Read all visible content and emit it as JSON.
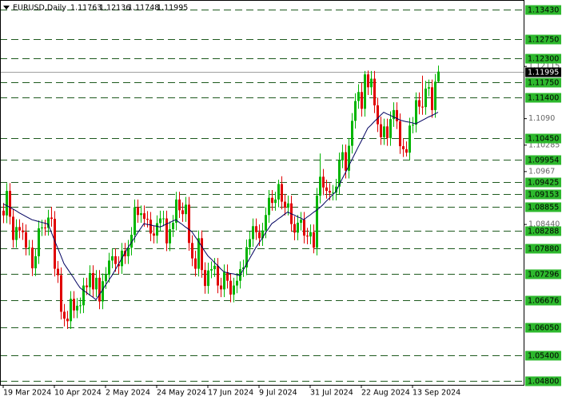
{
  "chart_data": {
    "type": "candlestick",
    "title": "EURUSD,Daily",
    "categories": [
      "19 Mar 2024",
      null,
      null,
      null,
      null,
      null,
      null,
      null,
      null,
      null,
      null,
      null,
      null,
      null,
      null,
      null,
      "10 Apr 2024",
      null,
      null,
      null,
      null,
      null,
      null,
      null,
      null,
      null,
      null,
      null,
      null,
      null,
      null,
      null,
      "2 May 2024",
      null,
      null,
      null,
      null,
      null,
      null,
      null,
      null,
      null,
      null,
      null,
      null,
      null,
      null,
      null,
      "24 May 2024",
      null,
      null,
      null,
      null,
      null,
      null,
      null,
      null,
      null,
      null,
      null,
      null,
      null,
      null,
      null,
      "17 Jun 2024",
      null,
      null,
      null,
      null,
      null,
      null,
      null,
      null,
      null,
      null,
      null,
      null,
      null,
      null,
      null,
      "9 Jul 2024",
      null,
      null,
      null,
      null,
      null,
      null,
      null,
      null,
      null,
      null,
      null,
      null,
      null,
      null,
      null,
      "31 Jul 2024",
      null,
      null,
      null,
      null,
      null,
      null,
      null,
      null,
      null,
      null,
      null,
      null,
      null,
      null,
      null,
      "22 Aug 2024",
      null,
      null,
      null,
      null,
      null,
      null,
      null,
      null,
      null,
      null,
      null,
      null,
      null,
      null,
      null,
      "13 Sep 2024",
      null,
      null,
      null,
      null,
      null,
      null,
      null,
      null
    ],
    "open": [
      1.0876,
      1.0865,
      1.0922,
      1.0862,
      1.0808,
      1.0838,
      1.083,
      1.0826,
      1.079,
      1.079,
      1.0742,
      1.077,
      1.0835,
      1.0837,
      1.0836,
      1.086,
      1.0857,
      1.0741,
      1.0726,
      1.0641,
      1.0625,
      1.0619,
      1.0671,
      1.0644,
      1.0655,
      1.0656,
      1.0702,
      1.0698,
      1.0731,
      1.0693,
      1.072,
      1.0665,
      1.0712,
      1.0727,
      1.076,
      1.077,
      1.0752,
      1.0747,
      1.0783,
      1.077,
      1.079,
      1.082,
      1.0884,
      1.0866,
      1.087,
      1.0857,
      1.0855,
      1.0823,
      1.0818,
      1.0847,
      1.0858,
      1.0858,
      1.08,
      1.0833,
      1.0848,
      1.0902,
      1.0877,
      1.0868,
      1.089,
      1.0801,
      1.0765,
      1.0741,
      1.0812,
      1.0738,
      1.0701,
      1.0737,
      1.074,
      1.0748,
      1.0702,
      1.0693,
      1.0733,
      1.0713,
      1.0681,
      1.0702,
      1.0713,
      1.074,
      1.0744,
      1.0791,
      1.081,
      1.084,
      1.0826,
      1.0812,
      1.083,
      1.0866,
      1.0906,
      1.0894,
      1.0902,
      1.0938,
      1.0897,
      1.0883,
      1.0893,
      1.0845,
      1.0825,
      1.0848,
      1.0855,
      1.0818,
      1.0816,
      1.0826,
      1.079,
      1.0911,
      1.0955,
      1.093,
      1.0922,
      1.0918,
      1.0918,
      1.0932,
      1.0993,
      1.1012,
      1.0969,
      1.1027,
      1.1085,
      1.1131,
      1.1152,
      1.1113,
      1.1193,
      1.1163,
      1.1183,
      1.1121,
      1.1077,
      1.1047,
      1.1072,
      1.1045,
      1.1089,
      1.111,
      1.1084,
      1.1026,
      1.1019,
      1.1011,
      1.1074,
      1.1076,
      1.1133,
      1.1118,
      1.1117,
      1.116,
      1.1163,
      1.111,
      1.11763
    ],
    "high": [
      1.0894,
      1.094,
      1.094,
      1.088,
      1.0856,
      1.0856,
      1.0848,
      1.0844,
      1.0808,
      1.0808,
      1.0788,
      1.0853,
      1.0855,
      1.0855,
      1.0878,
      1.0885,
      1.0875,
      1.0759,
      1.0744,
      1.0659,
      1.0643,
      1.0689,
      1.0689,
      1.0673,
      1.0674,
      1.072,
      1.072,
      1.0749,
      1.0749,
      1.0738,
      1.0738,
      1.073,
      1.0745,
      1.0778,
      1.0788,
      1.0788,
      1.077,
      1.0801,
      1.0801,
      1.0808,
      1.0838,
      1.0902,
      1.0902,
      1.0888,
      1.0888,
      1.0875,
      1.0873,
      1.0841,
      1.0865,
      1.0876,
      1.0876,
      1.0876,
      1.0851,
      1.0866,
      1.092,
      1.092,
      1.0895,
      1.0908,
      1.0908,
      1.0819,
      1.0783,
      1.083,
      1.083,
      1.0756,
      1.0755,
      1.0758,
      1.0766,
      1.0766,
      1.072,
      1.0751,
      1.0751,
      1.0731,
      1.072,
      1.0731,
      1.0758,
      1.0762,
      1.0809,
      1.0828,
      1.0858,
      1.0858,
      1.0844,
      1.0848,
      1.0884,
      1.0924,
      1.0924,
      1.092,
      1.0948,
      1.0956,
      1.0915,
      1.0911,
      1.0911,
      1.0863,
      1.0866,
      1.0873,
      1.0873,
      1.0836,
      1.0844,
      1.0844,
      1.0929,
      1.1009,
      1.0973,
      1.0948,
      1.094,
      1.0936,
      1.095,
      1.1011,
      1.103,
      1.103,
      1.1045,
      1.1103,
      1.1149,
      1.117,
      1.1174,
      1.1201,
      1.1202,
      1.1201,
      1.1201,
      1.1139,
      1.1095,
      1.109,
      1.109,
      1.1107,
      1.1128,
      1.1128,
      1.1102,
      1.1044,
      1.1037,
      1.1092,
      1.1094,
      1.1151,
      1.1151,
      1.119,
      1.1178,
      1.1181,
      1.1181,
      1.1194,
      1.12136
    ],
    "low": [
      1.0847,
      1.0847,
      1.0844,
      1.079,
      1.079,
      1.0812,
      1.0808,
      1.0772,
      1.0772,
      1.0724,
      1.0724,
      1.0752,
      1.0817,
      1.0818,
      1.0818,
      1.0839,
      1.0723,
      1.0708,
      1.0623,
      1.0607,
      1.0601,
      1.0601,
      1.0626,
      1.0626,
      1.0637,
      1.0638,
      1.068,
      1.068,
      1.0675,
      1.0675,
      1.0647,
      1.0647,
      1.0694,
      1.0709,
      1.0742,
      1.0734,
      1.0729,
      1.0729,
      1.0752,
      1.0752,
      1.0772,
      1.0802,
      1.0848,
      1.0848,
      1.0839,
      1.0837,
      1.0805,
      1.08,
      1.08,
      1.0829,
      1.084,
      1.0782,
      1.0782,
      1.0815,
      1.083,
      1.0859,
      1.085,
      1.085,
      1.0783,
      1.0747,
      1.0723,
      1.0723,
      1.072,
      1.0683,
      1.0683,
      1.0719,
      1.0722,
      1.0684,
      1.0675,
      1.0675,
      1.0695,
      1.0663,
      1.0663,
      1.0684,
      1.0695,
      1.0722,
      1.0726,
      1.0773,
      1.0792,
      1.0808,
      1.0794,
      1.0794,
      1.0812,
      1.0848,
      1.0876,
      1.0876,
      1.0884,
      1.0879,
      1.0865,
      1.0865,
      1.0827,
      1.0807,
      1.0807,
      1.083,
      1.08,
      1.0798,
      1.0798,
      1.0777,
      1.0772,
      1.0893,
      1.0912,
      1.0904,
      1.09,
      1.09,
      1.09,
      1.0914,
      1.0975,
      1.0951,
      1.0951,
      1.1009,
      1.1067,
      1.1113,
      1.1095,
      1.1095,
      1.1145,
      1.1145,
      1.1103,
      1.1059,
      1.1029,
      1.1029,
      1.1027,
      1.1027,
      1.1071,
      1.1066,
      1.1008,
      1.1001,
      1.1002,
      1.0993,
      1.1056,
      1.1058,
      1.11,
      1.1099,
      1.1099,
      1.1142,
      1.1092,
      1.1092,
      1.11748
    ],
    "close": [
      1.0865,
      1.0922,
      1.0862,
      1.0808,
      1.0838,
      1.083,
      1.0826,
      1.079,
      1.079,
      1.0742,
      1.077,
      1.0835,
      1.0837,
      1.0836,
      1.086,
      1.0857,
      1.0741,
      1.0726,
      1.0641,
      1.0625,
      1.0619,
      1.0671,
      1.0644,
      1.0655,
      1.0656,
      1.0702,
      1.0698,
      1.0731,
      1.0693,
      1.072,
      1.0665,
      1.0712,
      1.0727,
      1.076,
      1.077,
      1.0752,
      1.0747,
      1.0783,
      1.077,
      1.079,
      1.082,
      1.0884,
      1.0866,
      1.087,
      1.0857,
      1.0855,
      1.0823,
      1.0818,
      1.0847,
      1.0858,
      1.0858,
      1.08,
      1.0833,
      1.0848,
      1.0902,
      1.0877,
      1.0868,
      1.089,
      1.0801,
      1.0765,
      1.0741,
      1.0812,
      1.0738,
      1.0701,
      1.0737,
      1.074,
      1.0748,
      1.0702,
      1.0693,
      1.0733,
      1.0713,
      1.0681,
      1.0702,
      1.0713,
      1.074,
      1.0744,
      1.0791,
      1.081,
      1.084,
      1.0826,
      1.0812,
      1.083,
      1.0866,
      1.0906,
      1.0894,
      1.0902,
      1.0938,
      1.0897,
      1.0883,
      1.0893,
      1.0845,
      1.0825,
      1.0848,
      1.0855,
      1.0818,
      1.0816,
      1.0826,
      1.079,
      1.0911,
      1.0955,
      1.093,
      1.0922,
      1.0918,
      1.0918,
      1.0932,
      1.0993,
      1.1012,
      1.0969,
      1.1027,
      1.1085,
      1.1131,
      1.1152,
      1.1113,
      1.1193,
      1.1163,
      1.1183,
      1.1121,
      1.1077,
      1.1047,
      1.1072,
      1.1045,
      1.1089,
      1.111,
      1.1084,
      1.1026,
      1.1019,
      1.1011,
      1.1074,
      1.1076,
      1.1133,
      1.1118,
      1.1117,
      1.116,
      1.1163,
      1.111,
      1.1176,
      1.11995
    ],
    "up_color": "#00b400",
    "down_color": "#e00000",
    "moving_average": {
      "color": "#000060",
      "values": [
        1.0892,
        1.0888,
        1.0884,
        1.088,
        1.0876,
        1.0871,
        1.0867,
        1.0863,
        1.0859,
        1.0855,
        1.0853,
        1.0851,
        1.0849,
        1.0847,
        1.0845,
        1.0827,
        1.0808,
        1.079,
        1.0772,
        1.0753,
        1.0742,
        1.0731,
        1.072,
        1.0708,
        1.0697,
        1.0691,
        1.0686,
        1.068,
        1.0675,
        1.0669,
        1.068,
        1.0691,
        1.0703,
        1.0714,
        1.0725,
        1.0738,
        1.0751,
        1.0764,
        1.0777,
        1.079,
        1.0801,
        1.0812,
        1.0824,
        1.0835,
        1.0846,
        1.0844,
        1.0843,
        1.0841,
        1.084,
        1.0838,
        1.0841,
        1.0845,
        1.0848,
        1.0852,
        1.0855,
        1.0849,
        1.0844,
        1.0838,
        1.0833,
        1.0827,
        1.0816,
        1.0805,
        1.0794,
        1.0782,
        1.0771,
        1.0764,
        1.0756,
        1.0749,
        1.0741,
        1.0734,
        1.0732,
        1.073,
        1.0729,
        1.0727,
        1.0725,
        1.0738,
        1.0751,
        1.0764,
        1.0777,
        1.079,
        1.0801,
        1.0812,
        1.0824,
        1.0835,
        1.0846,
        1.0851,
        1.0857,
        1.0862,
        1.0868,
        1.0873,
        1.0869,
        1.0866,
        1.0862,
        1.0859,
        1.0855,
        1.0861,
        1.0866,
        1.0872,
        1.0877,
        1.0883,
        1.089,
        1.0898,
        1.0905,
        1.0913,
        1.092,
        1.0935,
        1.095,
        1.0964,
        1.0979,
        1.0994,
        1.1009,
        1.1024,
        1.1038,
        1.1053,
        1.1068,
        1.1075,
        1.1083,
        1.109,
        1.1098,
        1.1105,
        1.1101,
        1.1098,
        1.1094,
        1.1091,
        1.1087,
        1.1085,
        1.1083,
        1.1082,
        1.108,
        1.1078,
        1.1082,
        1.1086,
        1.109,
        1.1094,
        1.1097,
        1.1101,
        1.1105
      ]
    },
    "ylim": [
      1.0471,
      1.1366
    ],
    "yticks": [
      {
        "value": 1.12115,
        "label": "1.12115"
      },
      {
        "value": 1.109,
        "label": "1.1090"
      },
      1.10285,
      1.0967,
      {
        "value": 1.0844,
        "label": "1.08440"
      }
    ],
    "levels": [
      {
        "value": 1.1343,
        "label": "1.13430"
      },
      {
        "value": 1.1275,
        "label": "1.12750"
      },
      {
        "value": 1.123,
        "label": "1.12300"
      },
      {
        "value": 1.1175,
        "label": "1.11750"
      },
      {
        "value": 1.114,
        "label": "1.11400"
      },
      {
        "value": 1.1045,
        "label": "1.10450"
      },
      1.09954,
      1.09425,
      1.09153,
      1.08855,
      1.08288,
      {
        "value": 1.0788,
        "label": "1.07880"
      },
      1.07296,
      1.06676,
      {
        "value": 1.0605,
        "label": "1.06050"
      },
      {
        "value": 1.054,
        "label": "1.05400"
      },
      {
        "value": 1.048,
        "label": "1.04800"
      }
    ],
    "level_color": "#1e5a1e",
    "level_label_color": "#2db82d",
    "grid": false
  }
}
